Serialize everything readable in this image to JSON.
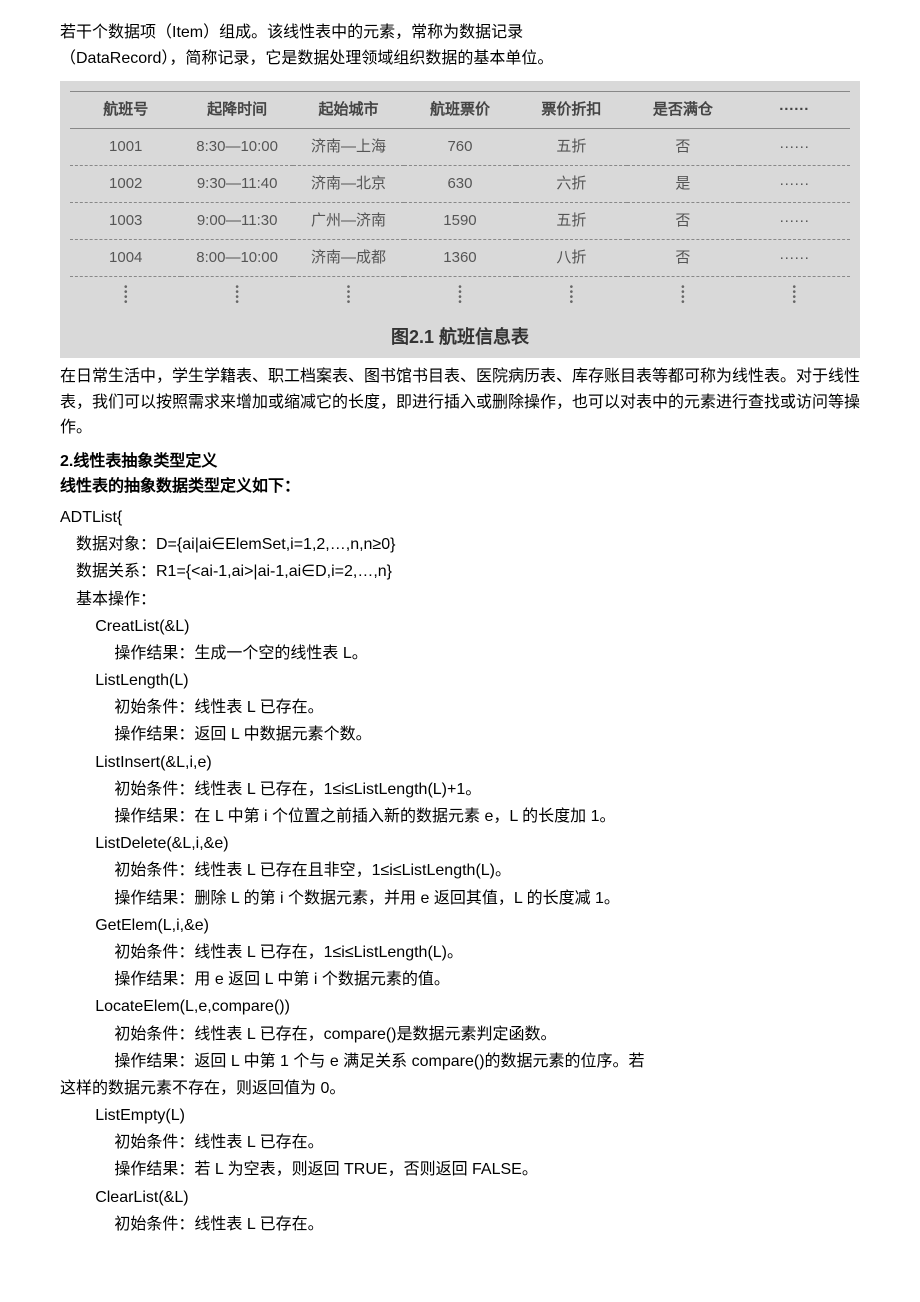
{
  "intro": {
    "line1": "若干个数据项（Item）组成。该线性表中的元素，常称为数据记录",
    "line2": "（DataRecord），简称记录，它是数据处理领域组织数据的基本单位。"
  },
  "table": {
    "headers": [
      "航班号",
      "起降时间",
      "起始城市",
      "航班票价",
      "票价折扣",
      "是否满仓",
      "······"
    ],
    "rows": [
      [
        "1001",
        "8:30—10:00",
        "济南—上海",
        "760",
        "五折",
        "否",
        "······"
      ],
      [
        "1002",
        "9:30—11:40",
        "济南—北京",
        "630",
        "六折",
        "是",
        "······"
      ],
      [
        "1003",
        "9:00—11:30",
        "广州—济南",
        "1590",
        "五折",
        "否",
        "······"
      ],
      [
        "1004",
        "8:00—10:00",
        "济南—成都",
        "1360",
        "八折",
        "否",
        "······"
      ]
    ],
    "caption": "图2.1  航班信息表"
  },
  "para1": "在日常生活中，学生学籍表、职工档案表、图书馆书目表、医院病历表、库存账目表等都可称为线性表。对于线性表，我们可以按照需求来增加或缩减它的长度，即进行插入或删除操作，也可以对表中的元素进行查找或访问等操作。",
  "heading": "2.线性表抽象类型定义",
  "subheading": "线性表的抽象数据类型定义如下：",
  "adt": {
    "name": "ADTList{",
    "dataobj": "数据对象：D={ai|ai∈ElemSet,i=1,2,…,n,n≥0}",
    "datarel": "数据关系：R1={<ai-1,ai>|ai-1,ai∈D,i=2,…,n}",
    "ops_label": "基本操作：",
    "ops": [
      {
        "sig": "CreatList(&L)",
        "lines": [
          "操作结果：生成一个空的线性表 L。"
        ]
      },
      {
        "sig": "ListLength(L)",
        "lines": [
          "初始条件：线性表 L 已存在。",
          "操作结果：返回 L 中数据元素个数。"
        ]
      },
      {
        "sig": "ListInsert(&L,i,e)",
        "lines": [
          "初始条件：线性表 L 已存在，1≤i≤ListLength(L)+1。",
          "操作结果：在 L 中第 i 个位置之前插入新的数据元素 e，L 的长度加 1。"
        ]
      },
      {
        "sig": "ListDelete(&L,i,&e)",
        "lines": [
          "初始条件：线性表 L 已存在且非空，1≤i≤ListLength(L)。",
          "操作结果：删除 L 的第 i 个数据元素，并用 e 返回其值，L 的长度减 1。"
        ]
      },
      {
        "sig": "GetElem(L,i,&e)",
        "lines": [
          "初始条件：线性表 L 已存在，1≤i≤ListLength(L)。",
          "操作结果：用 e 返回 L 中第 i 个数据元素的值。"
        ]
      },
      {
        "sig": "LocateElem(L,e,compare())",
        "lines": [
          "初始条件：线性表 L 已存在，compare()是数据元素判定函数。",
          "操作结果：返回 L 中第 1 个与 e 满足关系 compare()的数据元素的位序。若这样的数据元素不存在，则返回值为 0。"
        ],
        "wrap_last": true
      },
      {
        "sig": "ListEmpty(L)",
        "lines": [
          "初始条件：线性表 L 已存在。",
          "操作结果：若 L 为空表，则返回 TRUE，否则返回 FALSE。"
        ]
      },
      {
        "sig": "ClearList(&L)",
        "lines": [
          "初始条件：线性表 L 已存在。"
        ]
      }
    ]
  }
}
